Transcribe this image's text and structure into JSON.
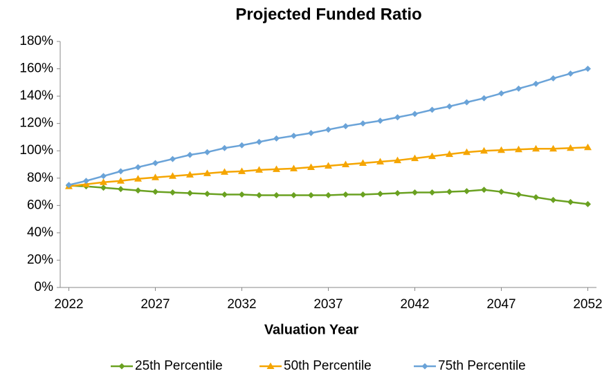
{
  "chart_data": {
    "type": "line",
    "title": "Projected Funded Ratio",
    "x_label": "Valuation Year",
    "x": [
      2022,
      2023,
      2024,
      2025,
      2026,
      2027,
      2028,
      2029,
      2030,
      2031,
      2032,
      2033,
      2034,
      2035,
      2036,
      2037,
      2038,
      2039,
      2040,
      2041,
      2042,
      2043,
      2044,
      2045,
      2046,
      2047,
      2048,
      2049,
      2050,
      2051,
      2052
    ],
    "series": [
      {
        "name": "25th Percentile",
        "color": "#6aa121",
        "marker": "diamond",
        "values": [
          74.5,
          74,
          73,
          72,
          71,
          70,
          69.5,
          69,
          68.5,
          68,
          68,
          67.5,
          67.5,
          67.5,
          67.5,
          67.5,
          68,
          68,
          68.5,
          69,
          69.5,
          69.5,
          70,
          70.5,
          71.5,
          70,
          68,
          66,
          64,
          62.5,
          61
        ]
      },
      {
        "name": "50th Percentile",
        "color": "#f5a500",
        "marker": "triangle",
        "values": [
          74,
          75.5,
          77,
          78,
          79.5,
          80.5,
          81.5,
          82.5,
          83.5,
          84.5,
          85,
          86,
          86.5,
          87,
          88,
          89,
          90,
          91,
          92,
          93,
          94.5,
          96,
          97.5,
          99,
          100,
          100.5,
          101,
          101.5,
          101.5,
          102,
          102.5
        ]
      },
      {
        "name": "75th Percentile",
        "color": "#6aa3d8",
        "marker": "diamond",
        "values": [
          75,
          78,
          81.5,
          85,
          88,
          91,
          94,
          97,
          99,
          102,
          104,
          106.5,
          109,
          111,
          113,
          115.5,
          118,
          120,
          122,
          124.5,
          127,
          130,
          132.5,
          135.5,
          138.5,
          142,
          145.5,
          149,
          153,
          156.5,
          160
        ]
      }
    ],
    "xlim": [
      2021.5,
      2052.5
    ],
    "xticks": [
      2022,
      2027,
      2032,
      2037,
      2042,
      2047,
      2052
    ],
    "ylim": [
      0,
      180
    ],
    "yticks": [
      {
        "value": 0,
        "label": "0%"
      },
      {
        "value": 20,
        "label": "20%"
      },
      {
        "value": 40,
        "label": "40%"
      },
      {
        "value": 60,
        "label": "60%"
      },
      {
        "value": 80,
        "label": "80%"
      },
      {
        "value": 100,
        "label": "100%"
      },
      {
        "value": 120,
        "label": "120%"
      },
      {
        "value": 140,
        "label": "140%"
      },
      {
        "value": 160,
        "label": "160%"
      },
      {
        "value": 180,
        "label": "180%"
      }
    ],
    "grid": false,
    "legend": "bottom"
  }
}
